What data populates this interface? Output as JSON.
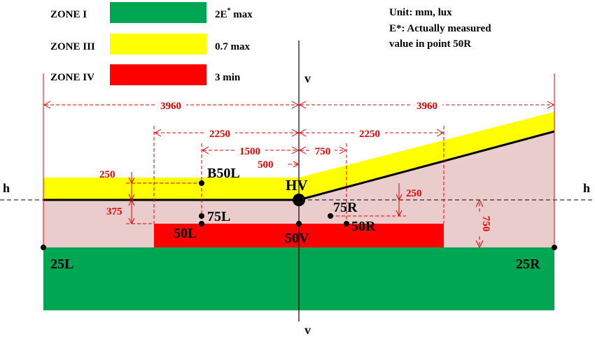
{
  "legend": {
    "items": [
      {
        "zone": "ZONE I",
        "value": "2E",
        "sup": "*",
        "value_suffix": " max",
        "color": "#00a651"
      },
      {
        "zone": "ZONE III",
        "value": "0.7 max",
        "color": "#ffff00"
      },
      {
        "zone": "ZONE IV",
        "value": "3 min",
        "color": "#ff0000"
      }
    ]
  },
  "notes": [
    "Unit: mm, lux",
    "E*: Actually measured",
    "value in point 50R"
  ],
  "axes": {
    "h_left": "h",
    "h_right": "h",
    "v_top": "v",
    "v_bottom": "v"
  },
  "points": {
    "HV": "HV",
    "B50L": "B50L",
    "75L": "75L",
    "50L": "50L",
    "50V": "50V",
    "75R": "75R",
    "50R": "50R",
    "25L": "25L",
    "25R": "25R"
  },
  "dimensions": {
    "d3960_left": "3960",
    "d3960_right": "3960",
    "d2250_left": "2250",
    "d2250_right": "2250",
    "d1500": "1500",
    "d750_h": "750",
    "d500": "500",
    "d250_left": "250",
    "d250_right": "250",
    "d375": "375",
    "d750_v": "750"
  },
  "colors": {
    "zone1": "#00a651",
    "zone3": "#ffff00",
    "zone4": "#ff0000",
    "zone_background": "#ebcccc",
    "dimension": "#e60000",
    "cutoff": "#000000"
  }
}
